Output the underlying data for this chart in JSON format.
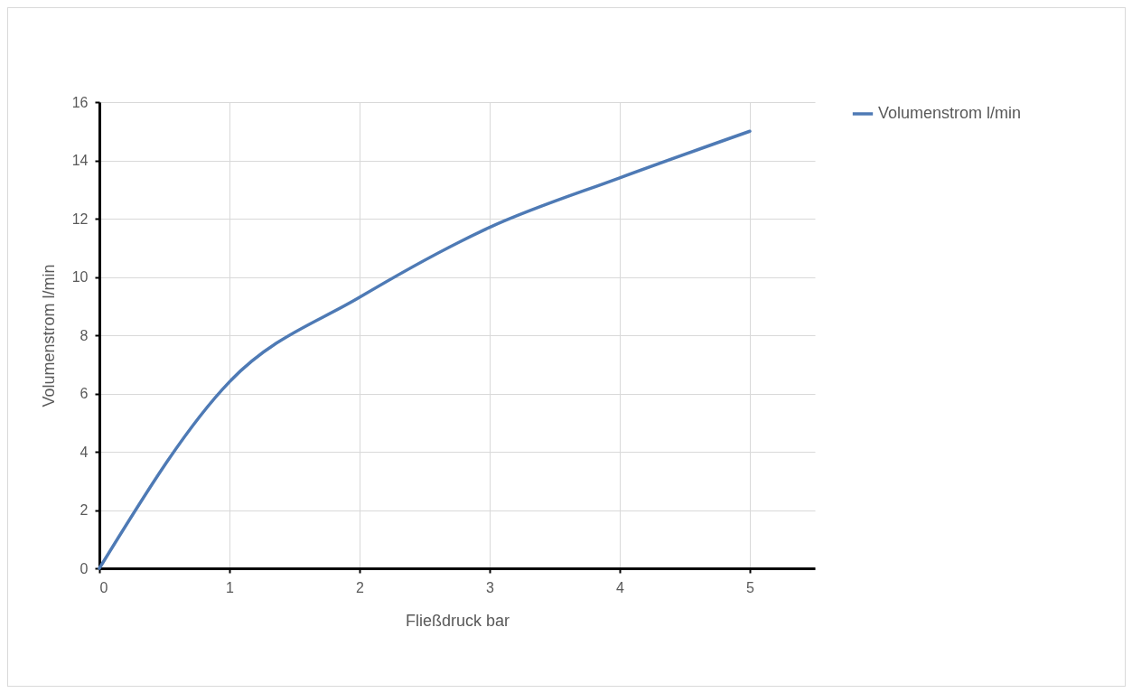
{
  "chart_data": {
    "type": "line",
    "xlabel": "Fließdruck bar",
    "ylabel": "Volumenstrom l/min",
    "x": [
      0,
      1,
      2,
      3,
      4,
      5
    ],
    "series": [
      {
        "name": "Volumenstrom l/min",
        "color": "#4e7ab5",
        "values": [
          0,
          6.4,
          9.3,
          11.7,
          13.4,
          15
        ]
      }
    ],
    "xlim": [
      0,
      5.5
    ],
    "xticks": [
      0,
      1,
      2,
      3,
      4,
      5
    ],
    "ylim": [
      0,
      16
    ],
    "yticks": [
      0,
      2,
      4,
      6,
      8,
      10,
      12,
      14,
      16
    ],
    "grid": true,
    "legend": "right",
    "marker": "none",
    "line_style": "solid"
  }
}
